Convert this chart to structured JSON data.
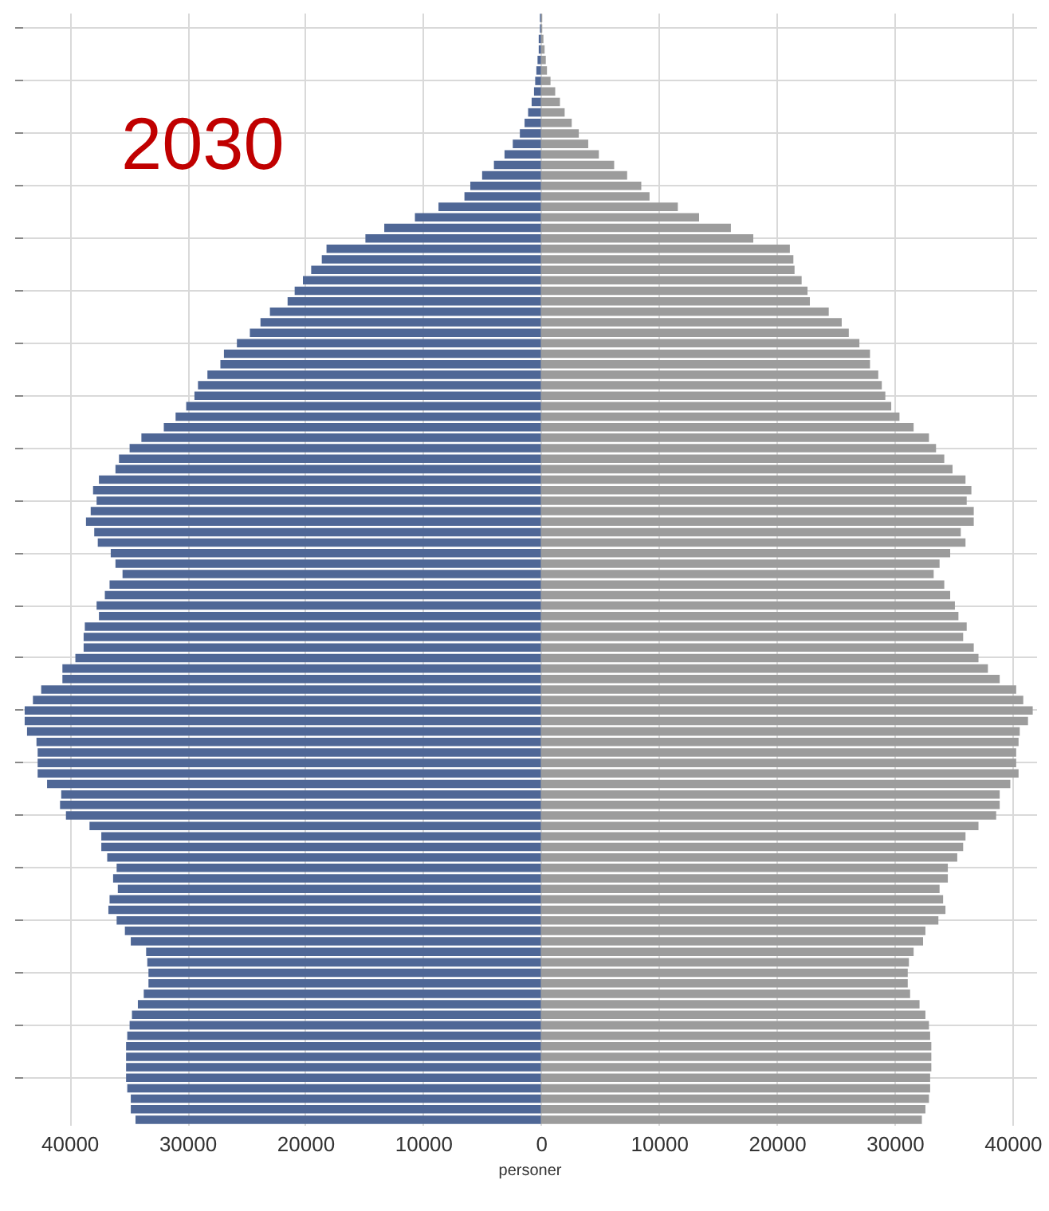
{
  "chart_data": {
    "type": "bar",
    "orientation": "horizontal",
    "stacked": true,
    "annotations": [
      "2030"
    ],
    "xlabel": "personer",
    "categories": [
      null,
      null,
      null,
      null,
      null,
      null,
      null,
      null,
      null,
      null,
      null,
      null,
      null,
      null,
      null,
      null,
      null,
      null,
      null,
      null,
      null,
      null,
      null,
      null,
      null,
      null,
      null,
      null,
      null,
      null,
      null,
      null,
      null,
      null,
      null,
      null,
      null,
      null,
      null,
      null,
      null,
      null,
      null,
      null,
      null,
      null,
      null,
      null,
      null,
      null,
      null,
      null,
      null,
      null,
      null,
      null,
      null,
      null,
      null,
      null,
      null,
      null,
      null,
      null,
      null,
      null,
      null,
      null,
      null,
      null,
      null,
      null,
      null,
      null,
      null,
      null,
      null,
      null,
      null,
      null,
      null,
      null,
      null,
      null,
      null,
      null,
      null,
      null,
      null,
      null,
      null,
      null,
      null,
      null,
      null,
      null,
      null,
      null,
      null,
      null,
      null,
      null,
      null,
      null,
      null,
      null
    ],
    "series": [
      {
        "color": "#4f6796",
        "values": [
          -100,
          -100,
          -200,
          -200,
          -300,
          -400,
          -500,
          -600,
          -800,
          -1100,
          -1400,
          -1800,
          -2400,
          -3100,
          -4000,
          -5000,
          -6000,
          -6500,
          -8700,
          -10700,
          -13300,
          -14900,
          -18200,
          -18600,
          -19500,
          -20200,
          -20900,
          -21500,
          -23000,
          -23800,
          -24700,
          -25800,
          -26900,
          -27200,
          -28300,
          -29100,
          -29400,
          -30100,
          -31000,
          -32000,
          -33900,
          -34900,
          -35800,
          -36100,
          -37500,
          -38000,
          -37700,
          -38200,
          -38600,
          -37900,
          -37600,
          -36500,
          -36100,
          -35500,
          -36600,
          -37000,
          -37700,
          -37500,
          -38700,
          -38800,
          -38800,
          -39500,
          -40600,
          -40600,
          -42400,
          -43100,
          -43800,
          -43800,
          -43600,
          -42800,
          -42700,
          -42700,
          -42700,
          -41900,
          -40700,
          -40800,
          -40300,
          -38300,
          -37300,
          -37300,
          -36800,
          -36000,
          -36300,
          -35900,
          -36600,
          -36700,
          -36000,
          -35300,
          -34800,
          -33500,
          -33400,
          -33300,
          -33300,
          -33700,
          -34200,
          -34700,
          -34900,
          -35100,
          -35200,
          -35200,
          -35200,
          -35200,
          -35100,
          -34800,
          -34800,
          -34400
        ]
      },
      {
        "color": "#9c9c9c",
        "values": [
          100,
          100,
          200,
          300,
          400,
          500,
          800,
          1200,
          1600,
          2000,
          2600,
          3200,
          4000,
          4900,
          6200,
          7300,
          8500,
          9200,
          11600,
          13400,
          16100,
          18000,
          21100,
          21400,
          21500,
          22100,
          22600,
          22800,
          24400,
          25500,
          26100,
          27000,
          27900,
          27900,
          28600,
          28900,
          29200,
          29700,
          30400,
          31600,
          32900,
          33500,
          34200,
          34900,
          36000,
          36500,
          36100,
          36700,
          36700,
          35600,
          36000,
          34700,
          33800,
          33300,
          34200,
          34700,
          35100,
          35400,
          36100,
          35800,
          36700,
          37100,
          37900,
          38900,
          40300,
          40900,
          41700,
          41300,
          40600,
          40500,
          40300,
          40300,
          40500,
          39800,
          38900,
          38900,
          38600,
          37100,
          36000,
          35800,
          35300,
          34500,
          34500,
          33800,
          34100,
          34300,
          33700,
          32600,
          32400,
          31600,
          31200,
          31100,
          31100,
          31300,
          32100,
          32600,
          32900,
          33000,
          33100,
          33100,
          33100,
          33000,
          33000,
          32900,
          32600,
          32300
        ]
      }
    ],
    "xlim": [
      -44000,
      42000
    ],
    "xticks": [
      {
        "value": -40000,
        "label": "40000"
      },
      {
        "value": -30000,
        "label": "30000"
      },
      {
        "value": -20000,
        "label": "20000"
      },
      {
        "value": -10000,
        "label": "10000"
      },
      0,
      10000,
      20000,
      30000,
      40000
    ],
    "grid": true,
    "tick_labels": "x"
  }
}
